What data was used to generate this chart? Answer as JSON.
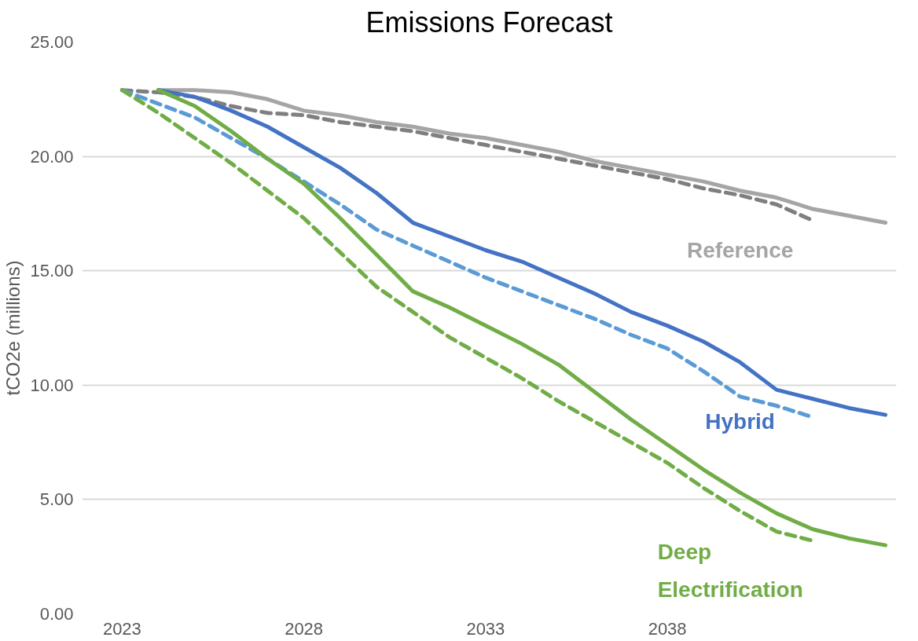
{
  "chart_data": {
    "type": "line",
    "title": "Emissions Forecast",
    "ylabel": "tCO2e (millions)",
    "xlim": [
      2021.9,
      2044.3
    ],
    "xticks": [
      2023,
      2028,
      2033,
      2038
    ],
    "ylim": [
      0,
      25
    ],
    "yticks": [
      {
        "value": 0,
        "label": "0.00"
      },
      {
        "value": 5,
        "label": "5.00"
      },
      {
        "value": 10,
        "label": "10.00"
      },
      {
        "value": 15,
        "label": "15.00"
      },
      {
        "value": 20,
        "label": "20.00"
      },
      {
        "value": 25,
        "label": "25.00"
      }
    ],
    "grid": "y",
    "marker": "none",
    "series": [
      {
        "name": "Reference",
        "color": "#a5a5a5",
        "line_style": "solid",
        "x": [
          2024,
          2025,
          2026,
          2027,
          2028,
          2029,
          2030,
          2031,
          2032,
          2033,
          2034,
          2035,
          2036,
          2037,
          2038,
          2039,
          2040,
          2041,
          2042,
          2043,
          2044
        ],
        "values": [
          22.9,
          22.9,
          22.8,
          22.5,
          22.0,
          21.8,
          21.5,
          21.3,
          21.0,
          20.8,
          20.5,
          20.2,
          19.8,
          19.5,
          19.2,
          18.9,
          18.5,
          18.2,
          17.7,
          17.4,
          17.1
        ]
      },
      {
        "color": "#7f7f7f",
        "line_style": "dashed",
        "x": [
          2023,
          2024,
          2025,
          2026,
          2027,
          2028,
          2029,
          2030,
          2031,
          2032,
          2033,
          2034,
          2035,
          2036,
          2037,
          2038,
          2039,
          2040,
          2041,
          2042
        ],
        "values": [
          22.9,
          22.8,
          22.6,
          22.2,
          21.9,
          21.8,
          21.5,
          21.3,
          21.1,
          20.8,
          20.5,
          20.2,
          19.9,
          19.6,
          19.3,
          19.0,
          18.6,
          18.3,
          17.9,
          17.2
        ]
      },
      {
        "name": "Hybrid",
        "color": "#4472c4",
        "line_style": "solid",
        "x": [
          2024,
          2025,
          2026,
          2027,
          2028,
          2029,
          2030,
          2031,
          2032,
          2033,
          2034,
          2035,
          2036,
          2037,
          2038,
          2039,
          2040,
          2041,
          2042,
          2043,
          2044
        ],
        "values": [
          22.9,
          22.6,
          22.0,
          21.3,
          20.4,
          19.5,
          18.4,
          17.1,
          16.5,
          15.9,
          15.4,
          14.7,
          14.0,
          13.2,
          12.6,
          11.9,
          11.0,
          9.8,
          9.4,
          9.0,
          8.7
        ]
      },
      {
        "color": "#5b9bd5",
        "line_style": "dashed",
        "x": [
          2023,
          2024,
          2025,
          2026,
          2027,
          2028,
          2029,
          2030,
          2031,
          2032,
          2033,
          2034,
          2035,
          2036,
          2037,
          2038,
          2039,
          2040,
          2041,
          2042
        ],
        "values": [
          22.9,
          22.3,
          21.7,
          20.8,
          19.9,
          18.9,
          17.9,
          16.8,
          16.1,
          15.4,
          14.7,
          14.1,
          13.5,
          12.9,
          12.2,
          11.6,
          10.6,
          9.5,
          9.1,
          8.6
        ]
      },
      {
        "name": "Deep Electrification",
        "color": "#70ad47",
        "line_style": "solid",
        "x": [
          2024,
          2025,
          2026,
          2027,
          2028,
          2029,
          2030,
          2031,
          2032,
          2033,
          2034,
          2035,
          2036,
          2037,
          2038,
          2039,
          2040,
          2041,
          2042,
          2043,
          2044
        ],
        "values": [
          22.9,
          22.2,
          21.1,
          19.9,
          18.8,
          17.3,
          15.7,
          14.1,
          13.4,
          12.6,
          11.8,
          10.9,
          9.7,
          8.5,
          7.4,
          6.3,
          5.3,
          4.4,
          3.7,
          3.3,
          3.0
        ]
      },
      {
        "color": "#70ad47",
        "line_style": "dashed",
        "x": [
          2023,
          2024,
          2025,
          2026,
          2027,
          2028,
          2029,
          2030,
          2031,
          2032,
          2033,
          2034,
          2035,
          2036,
          2037,
          2038,
          2039,
          2040,
          2041,
          2042
        ],
        "values": [
          22.9,
          21.9,
          20.8,
          19.7,
          18.5,
          17.3,
          15.8,
          14.3,
          13.2,
          12.1,
          11.2,
          10.3,
          9.3,
          8.4,
          7.5,
          6.6,
          5.5,
          4.5,
          3.6,
          3.2
        ]
      }
    ]
  }
}
